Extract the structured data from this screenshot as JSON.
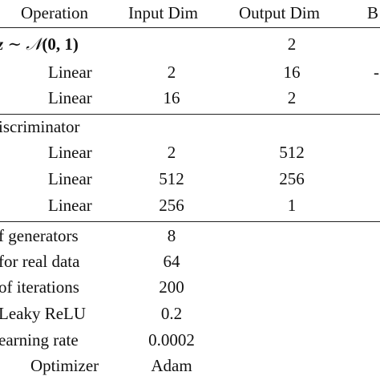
{
  "header": {
    "operation": "Operation",
    "input_dim": "Input Dim",
    "output_dim": "Output Dim",
    "partial_col": "B"
  },
  "generator": {
    "latent_prefix": "z",
    "latent_sim": " ∼ ",
    "latent_dist": "𝒩",
    "latent_params": "(0, 1)",
    "latent_output": "2",
    "partial_mark": "-",
    "rows": [
      {
        "op": "Linear",
        "in": "2",
        "out": "16"
      },
      {
        "op": "Linear",
        "in": "16",
        "out": "2"
      }
    ]
  },
  "discriminator": {
    "title": "iscriminator",
    "rows": [
      {
        "op": "Linear",
        "in": "2",
        "out": "512"
      },
      {
        "op": "Linear",
        "in": "512",
        "out": "256"
      },
      {
        "op": "Linear",
        "in": "256",
        "out": "1"
      }
    ]
  },
  "hyperparams": [
    {
      "label": "f generators",
      "value": "8"
    },
    {
      "label": "for real data",
      "value": "64"
    },
    {
      "label": "of iterations",
      "value": "200"
    },
    {
      "label": "Leaky ReLU",
      "value": "0.2"
    },
    {
      "label": "earning rate",
      "value": "0.0002"
    },
    {
      "label": "Optimizer",
      "value": "Adam"
    }
  ]
}
